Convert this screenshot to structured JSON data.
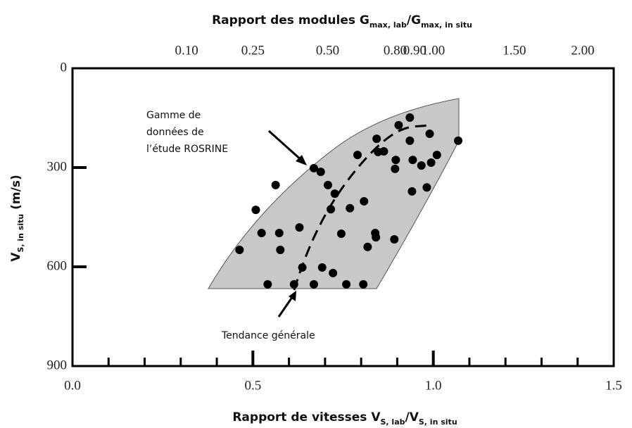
{
  "chart_data": {
    "type": "scatter",
    "xlabel": [
      "Rapport de vitesses V",
      "S, lab",
      "/V",
      "S, in situ"
    ],
    "ylabel": [
      "V",
      "S, in situ",
      " (m/s)"
    ],
    "x2label": [
      "Rapport des modules G",
      "max, lab",
      "/G",
      "max, in situ"
    ],
    "annotations": [
      [
        "Gamme de",
        "données de",
        "l’étude ROSRINE"
      ],
      [
        "Tendance générale"
      ]
    ],
    "xlim": [
      0,
      1.5
    ],
    "xticks": [
      {
        "value": 0,
        "label": "0.0"
      },
      {
        "value": 0.5,
        "label": "0.5"
      },
      {
        "value": 1,
        "label": "1.0"
      },
      {
        "value": 1.5,
        "label": "1.5"
      }
    ],
    "xminorticks": [
      0.1,
      0.2,
      0.3,
      0.4,
      0.6,
      0.7,
      0.8,
      0.9,
      1.1,
      1.2,
      1.3,
      1.4
    ],
    "ylim": [
      0,
      900
    ],
    "yticks": [
      0,
      300,
      600,
      900
    ],
    "yreversed": true,
    "x2scale": "square",
    "x2ticks": [
      {
        "value": 0.1,
        "label": "0.10"
      },
      {
        "value": 0.25,
        "label": "0.25"
      },
      {
        "value": 0.5,
        "label": "0.50"
      },
      {
        "value": 0.8,
        "label": "0.80"
      },
      {
        "value": 0.9,
        "label": "0.90"
      },
      {
        "value": 1,
        "label": "1.00"
      },
      {
        "value": 1.5,
        "label": "1.50"
      },
      {
        "value": 2,
        "label": "2.00"
      }
    ],
    "color": "#000000",
    "x": [
      0.463,
      0.524,
      0.508,
      0.573,
      0.576,
      0.563,
      0.629,
      0.637,
      0.541,
      0.614,
      0.669,
      0.692,
      0.722,
      0.759,
      0.806,
      0.669,
      0.688,
      0.708,
      0.716,
      0.727,
      0.745,
      0.769,
      0.79,
      0.808,
      0.818,
      0.839,
      0.841,
      0.843,
      0.847,
      0.863,
      0.892,
      0.894,
      0.896,
      0.935,
      0.941,
      0.943,
      0.967,
      0.982,
      0.994,
      0.99,
      1.01,
      1.069,
      0.935,
      0.904
    ],
    "values": [
      549,
      498,
      428,
      498,
      549,
      353,
      481,
      602,
      653,
      653,
      653,
      602,
      619,
      653,
      653,
      302,
      313,
      353,
      426,
      379,
      500,
      423,
      262,
      402,
      540,
      498,
      511,
      213,
      253,
      251,
      517,
      304,
      277,
      219,
      372,
      277,
      294,
      360,
      285,
      198,
      262,
      219,
      149,
      172
    ]
  }
}
